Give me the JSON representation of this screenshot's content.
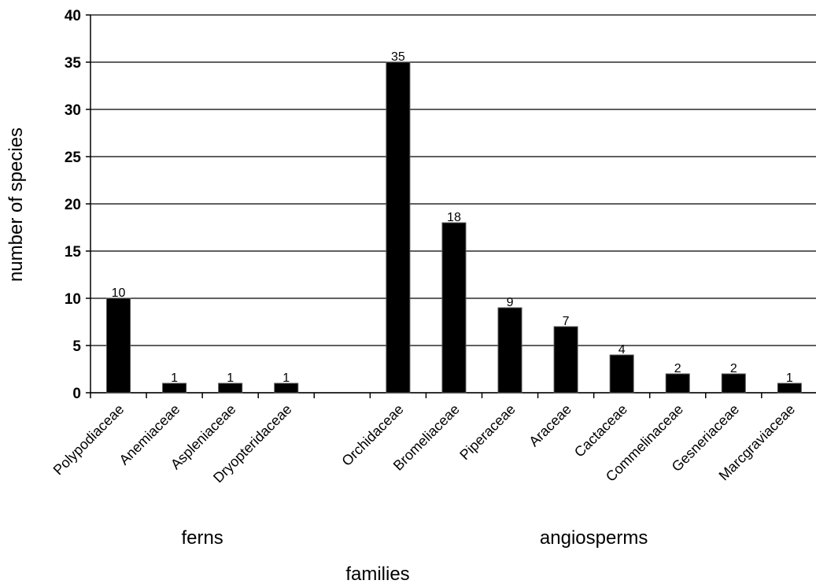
{
  "chart_data": {
    "type": "bar",
    "xlabel": "families",
    "ylabel": "number of species",
    "ylim": [
      0,
      40
    ],
    "yticks": [
      0,
      5,
      10,
      15,
      20,
      25,
      30,
      35,
      40
    ],
    "grid": true,
    "bar_color": "#000000",
    "groups": [
      {
        "name": "ferns",
        "categories": [
          "Polypodiaceae",
          "Anemiaceae",
          "Aspleniaceae",
          "Dryopteridaceae"
        ],
        "values": [
          10,
          1,
          1,
          1
        ]
      },
      {
        "name": "angiosperms",
        "categories": [
          "Orchidaceae",
          "Bromeliaceae",
          "Piperaceae",
          "Araceae",
          "Cactaceae",
          "Commelinaceae",
          "Gesneriaceae",
          "Marcgraviaceae"
        ],
        "values": [
          35,
          18,
          9,
          7,
          4,
          2,
          2,
          1
        ]
      }
    ]
  }
}
